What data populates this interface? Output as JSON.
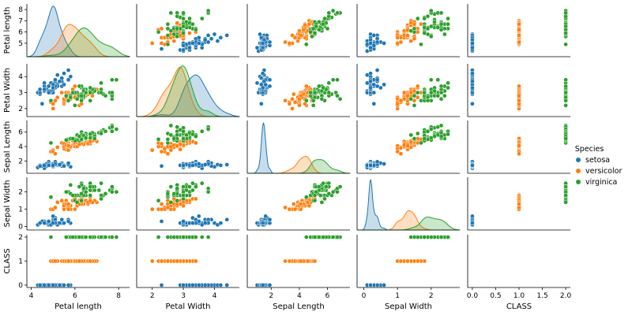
{
  "chart_data": {
    "type": "scatter",
    "subtype": "pairplot",
    "variables": [
      "Petal length",
      "Petal Width",
      "Sepal Length",
      "Sepal Width",
      "CLASS"
    ],
    "diagonal": "kde",
    "legend": {
      "title": "Species",
      "placement": "right",
      "entries": [
        {
          "name": "setosa",
          "color": "#1f77b4"
        },
        {
          "name": "versicolor",
          "color": "#ff7f0e"
        },
        {
          "name": "virginica",
          "color": "#2ca02c"
        }
      ]
    },
    "axes": [
      {
        "label": "Petal length",
        "lim": [
          3.8,
          8.5
        ],
        "ticks": [
          "4",
          "6",
          "8"
        ],
        "tick_values": [
          4,
          6,
          8
        ]
      },
      {
        "label": "Petal Width",
        "lim": [
          1.5,
          4.8
        ],
        "ticks": [
          "2",
          "3",
          "4"
        ],
        "tick_values": [
          2,
          3,
          4
        ]
      },
      {
        "label": "Sepal Length",
        "lim": [
          0.3,
          7.6
        ],
        "ticks": [
          "2",
          "4",
          "6"
        ],
        "tick_values": [
          2,
          4,
          6
        ]
      },
      {
        "label": "Sepal Width",
        "lim": [
          -0.2,
          2.85
        ],
        "ticks": [
          "0",
          "1",
          "2"
        ],
        "tick_values": [
          0,
          1,
          2
        ]
      },
      {
        "label": "CLASS",
        "lim": [
          -0.1,
          2.1
        ],
        "ticks": [
          "0.0",
          "0.5",
          "1.0",
          "1.5",
          "2.0"
        ],
        "tick_values": [
          0,
          0.5,
          1,
          1.5,
          2
        ]
      }
    ],
    "row_ticks": [
      [
        "5",
        "6",
        "7",
        "8"
      ],
      [
        "2",
        "3",
        "4"
      ],
      [
        "2",
        "4",
        "6"
      ],
      [
        "0",
        "1",
        "2"
      ],
      [
        "0",
        "1",
        "2"
      ]
    ],
    "row_tick_values": [
      [
        5,
        6,
        7,
        8
      ],
      [
        2,
        3,
        4
      ],
      [
        2,
        4,
        6
      ],
      [
        0,
        1,
        2
      ],
      [
        0,
        1,
        2
      ]
    ],
    "series_summary": [
      {
        "name": "setosa",
        "Petal length_mean": 5.0,
        "Petal Width_mean": 3.4,
        "Sepal Length_mean": 1.46,
        "Sepal Width_mean": 0.25,
        "CLASS": 0
      },
      {
        "name": "versicolor",
        "Petal length_mean": 5.9,
        "Petal Width_mean": 2.77,
        "Sepal Length_mean": 4.26,
        "Sepal Width_mean": 1.33,
        "CLASS": 1
      },
      {
        "name": "virginica",
        "Petal length_mean": 6.6,
        "Petal Width_mean": 2.97,
        "Sepal Length_mean": 5.55,
        "Sepal Width_mean": 2.03,
        "CLASS": 2
      }
    ],
    "points": {
      "setosa": [
        [
          5.1,
          3.5,
          1.4,
          0.2,
          0
        ],
        [
          4.9,
          3.0,
          1.4,
          0.2,
          0
        ],
        [
          4.7,
          3.2,
          1.3,
          0.2,
          0
        ],
        [
          4.6,
          3.1,
          1.5,
          0.2,
          0
        ],
        [
          5.0,
          3.6,
          1.4,
          0.2,
          0
        ],
        [
          5.4,
          3.9,
          1.7,
          0.4,
          0
        ],
        [
          4.6,
          3.4,
          1.4,
          0.3,
          0
        ],
        [
          5.0,
          3.4,
          1.5,
          0.2,
          0
        ],
        [
          4.4,
          2.9,
          1.4,
          0.2,
          0
        ],
        [
          4.9,
          3.1,
          1.5,
          0.1,
          0
        ],
        [
          5.4,
          3.7,
          1.5,
          0.2,
          0
        ],
        [
          4.8,
          3.4,
          1.6,
          0.2,
          0
        ],
        [
          4.8,
          3.0,
          1.4,
          0.1,
          0
        ],
        [
          4.3,
          3.0,
          1.1,
          0.1,
          0
        ],
        [
          5.8,
          4.0,
          1.2,
          0.2,
          0
        ],
        [
          5.7,
          4.4,
          1.5,
          0.4,
          0
        ],
        [
          5.4,
          3.9,
          1.3,
          0.4,
          0
        ],
        [
          5.1,
          3.5,
          1.4,
          0.3,
          0
        ],
        [
          5.7,
          3.8,
          1.7,
          0.3,
          0
        ],
        [
          5.1,
          3.8,
          1.5,
          0.3,
          0
        ],
        [
          5.4,
          3.4,
          1.7,
          0.2,
          0
        ],
        [
          5.1,
          3.7,
          1.5,
          0.4,
          0
        ],
        [
          4.6,
          3.6,
          1.0,
          0.2,
          0
        ],
        [
          5.1,
          3.3,
          1.7,
          0.5,
          0
        ],
        [
          4.8,
          3.4,
          1.9,
          0.2,
          0
        ],
        [
          5.0,
          3.0,
          1.6,
          0.2,
          0
        ],
        [
          5.0,
          3.4,
          1.6,
          0.4,
          0
        ],
        [
          5.2,
          3.5,
          1.5,
          0.2,
          0
        ],
        [
          5.2,
          3.4,
          1.4,
          0.2,
          0
        ],
        [
          4.7,
          3.2,
          1.6,
          0.2,
          0
        ],
        [
          4.8,
          3.1,
          1.6,
          0.2,
          0
        ],
        [
          5.4,
          3.4,
          1.5,
          0.4,
          0
        ],
        [
          5.2,
          4.1,
          1.5,
          0.1,
          0
        ],
        [
          5.5,
          4.2,
          1.4,
          0.2,
          0
        ],
        [
          4.9,
          3.1,
          1.5,
          0.2,
          0
        ],
        [
          5.0,
          3.2,
          1.2,
          0.2,
          0
        ],
        [
          5.5,
          3.5,
          1.3,
          0.2,
          0
        ],
        [
          4.9,
          3.6,
          1.4,
          0.1,
          0
        ],
        [
          4.4,
          3.0,
          1.3,
          0.2,
          0
        ],
        [
          5.1,
          3.4,
          1.5,
          0.2,
          0
        ],
        [
          5.0,
          3.5,
          1.3,
          0.3,
          0
        ],
        [
          4.5,
          2.3,
          1.3,
          0.3,
          0
        ],
        [
          4.4,
          3.2,
          1.3,
          0.2,
          0
        ],
        [
          5.0,
          3.5,
          1.6,
          0.6,
          0
        ],
        [
          5.1,
          3.8,
          1.9,
          0.4,
          0
        ],
        [
          4.8,
          3.0,
          1.4,
          0.3,
          0
        ],
        [
          5.1,
          3.8,
          1.6,
          0.2,
          0
        ],
        [
          4.6,
          3.2,
          1.4,
          0.2,
          0
        ],
        [
          5.3,
          3.7,
          1.5,
          0.2,
          0
        ],
        [
          5.0,
          3.3,
          1.4,
          0.2,
          0
        ]
      ],
      "versicolor": [
        [
          7.0,
          3.2,
          4.7,
          1.4,
          1
        ],
        [
          6.4,
          3.2,
          4.5,
          1.5,
          1
        ],
        [
          6.9,
          3.1,
          4.9,
          1.5,
          1
        ],
        [
          5.5,
          2.3,
          4.0,
          1.3,
          1
        ],
        [
          6.5,
          2.8,
          4.6,
          1.5,
          1
        ],
        [
          5.7,
          2.8,
          4.5,
          1.3,
          1
        ],
        [
          6.3,
          3.3,
          4.7,
          1.6,
          1
        ],
        [
          4.9,
          2.4,
          3.3,
          1.0,
          1
        ],
        [
          6.6,
          2.9,
          4.6,
          1.3,
          1
        ],
        [
          5.2,
          2.7,
          3.9,
          1.4,
          1
        ],
        [
          5.0,
          2.0,
          3.5,
          1.0,
          1
        ],
        [
          5.9,
          3.0,
          4.2,
          1.5,
          1
        ],
        [
          6.0,
          2.2,
          4.0,
          1.0,
          1
        ],
        [
          6.1,
          2.9,
          4.7,
          1.4,
          1
        ],
        [
          5.6,
          2.9,
          3.6,
          1.3,
          1
        ],
        [
          6.7,
          3.1,
          4.4,
          1.4,
          1
        ],
        [
          5.6,
          3.0,
          4.5,
          1.5,
          1
        ],
        [
          5.8,
          2.7,
          4.1,
          1.0,
          1
        ],
        [
          6.2,
          2.2,
          4.5,
          1.5,
          1
        ],
        [
          5.6,
          2.5,
          3.9,
          1.1,
          1
        ],
        [
          5.9,
          3.2,
          4.8,
          1.8,
          1
        ],
        [
          6.1,
          2.8,
          4.0,
          1.3,
          1
        ],
        [
          6.3,
          2.5,
          4.9,
          1.5,
          1
        ],
        [
          6.1,
          2.8,
          4.7,
          1.2,
          1
        ],
        [
          6.4,
          2.9,
          4.3,
          1.3,
          1
        ],
        [
          6.6,
          3.0,
          4.4,
          1.4,
          1
        ],
        [
          6.8,
          2.8,
          4.8,
          1.4,
          1
        ],
        [
          6.7,
          3.0,
          5.0,
          1.7,
          1
        ],
        [
          6.0,
          2.9,
          4.5,
          1.5,
          1
        ],
        [
          5.7,
          2.6,
          3.5,
          1.0,
          1
        ],
        [
          5.5,
          2.4,
          3.8,
          1.1,
          1
        ],
        [
          5.5,
          2.4,
          3.7,
          1.0,
          1
        ],
        [
          5.8,
          2.7,
          3.9,
          1.2,
          1
        ],
        [
          6.0,
          2.7,
          5.1,
          1.6,
          1
        ],
        [
          5.4,
          3.0,
          4.5,
          1.5,
          1
        ],
        [
          6.0,
          3.4,
          4.5,
          1.6,
          1
        ],
        [
          6.7,
          3.1,
          4.7,
          1.5,
          1
        ],
        [
          6.3,
          2.3,
          4.4,
          1.3,
          1
        ],
        [
          5.6,
          3.0,
          4.1,
          1.3,
          1
        ],
        [
          5.5,
          2.5,
          4.0,
          1.3,
          1
        ],
        [
          5.5,
          2.6,
          4.4,
          1.2,
          1
        ],
        [
          6.1,
          3.0,
          4.6,
          1.4,
          1
        ],
        [
          5.8,
          2.6,
          4.0,
          1.2,
          1
        ],
        [
          5.0,
          2.3,
          3.3,
          1.0,
          1
        ],
        [
          5.6,
          2.7,
          4.2,
          1.3,
          1
        ],
        [
          5.7,
          3.0,
          4.2,
          1.2,
          1
        ],
        [
          5.7,
          2.9,
          4.2,
          1.3,
          1
        ],
        [
          6.2,
          2.9,
          4.3,
          1.3,
          1
        ],
        [
          5.1,
          2.5,
          3.0,
          1.1,
          1
        ],
        [
          5.7,
          2.8,
          4.1,
          1.3,
          1
        ]
      ],
      "virginica": [
        [
          6.3,
          3.3,
          6.0,
          2.5,
          2
        ],
        [
          5.8,
          2.7,
          5.1,
          1.9,
          2
        ],
        [
          7.1,
          3.0,
          5.9,
          2.1,
          2
        ],
        [
          6.3,
          2.9,
          5.6,
          1.8,
          2
        ],
        [
          6.5,
          3.0,
          5.8,
          2.2,
          2
        ],
        [
          7.6,
          3.0,
          6.6,
          2.1,
          2
        ],
        [
          4.9,
          2.5,
          4.5,
          1.7,
          2
        ],
        [
          7.3,
          2.9,
          6.3,
          1.8,
          2
        ],
        [
          6.7,
          2.5,
          5.8,
          1.8,
          2
        ],
        [
          7.2,
          3.6,
          6.1,
          2.5,
          2
        ],
        [
          6.5,
          3.2,
          5.1,
          2.0,
          2
        ],
        [
          6.4,
          2.7,
          5.3,
          1.9,
          2
        ],
        [
          6.8,
          3.0,
          5.5,
          2.1,
          2
        ],
        [
          5.7,
          2.5,
          5.0,
          2.0,
          2
        ],
        [
          5.8,
          2.8,
          5.1,
          2.4,
          2
        ],
        [
          6.4,
          3.2,
          5.3,
          2.3,
          2
        ],
        [
          6.5,
          3.0,
          5.5,
          1.8,
          2
        ],
        [
          7.7,
          3.8,
          6.7,
          2.2,
          2
        ],
        [
          7.7,
          2.6,
          6.9,
          2.3,
          2
        ],
        [
          6.0,
          2.2,
          5.0,
          1.5,
          2
        ],
        [
          6.9,
          3.2,
          5.7,
          2.3,
          2
        ],
        [
          5.6,
          2.8,
          4.9,
          2.0,
          2
        ],
        [
          7.7,
          2.8,
          6.7,
          2.0,
          2
        ],
        [
          6.3,
          2.7,
          4.9,
          1.8,
          2
        ],
        [
          6.7,
          3.3,
          5.7,
          2.1,
          2
        ],
        [
          7.2,
          3.2,
          6.0,
          1.8,
          2
        ],
        [
          6.2,
          2.8,
          4.8,
          1.8,
          2
        ],
        [
          6.1,
          3.0,
          4.9,
          1.8,
          2
        ],
        [
          6.4,
          2.8,
          5.6,
          2.1,
          2
        ],
        [
          7.2,
          3.0,
          5.8,
          1.6,
          2
        ],
        [
          7.4,
          2.8,
          6.1,
          1.9,
          2
        ],
        [
          7.9,
          3.8,
          6.4,
          2.0,
          2
        ],
        [
          6.4,
          2.8,
          5.6,
          2.2,
          2
        ],
        [
          6.3,
          2.8,
          5.1,
          1.5,
          2
        ],
        [
          6.1,
          2.6,
          5.6,
          1.4,
          2
        ],
        [
          7.7,
          3.0,
          6.1,
          2.3,
          2
        ],
        [
          6.3,
          3.4,
          5.6,
          2.4,
          2
        ],
        [
          6.4,
          3.1,
          5.5,
          1.8,
          2
        ],
        [
          6.0,
          3.0,
          4.8,
          1.8,
          2
        ],
        [
          6.9,
          3.1,
          5.4,
          2.1,
          2
        ],
        [
          6.7,
          3.1,
          5.6,
          2.4,
          2
        ],
        [
          6.9,
          3.1,
          5.1,
          2.3,
          2
        ],
        [
          5.8,
          2.7,
          5.1,
          1.9,
          2
        ],
        [
          6.8,
          3.2,
          5.9,
          2.3,
          2
        ],
        [
          6.7,
          3.3,
          5.7,
          2.5,
          2
        ],
        [
          6.7,
          3.0,
          5.2,
          2.3,
          2
        ],
        [
          6.3,
          2.5,
          5.0,
          1.9,
          2
        ],
        [
          6.5,
          3.0,
          5.2,
          2.0,
          2
        ],
        [
          6.2,
          3.4,
          5.4,
          2.3,
          2
        ],
        [
          5.9,
          3.0,
          5.1,
          1.8,
          2
        ]
      ]
    }
  }
}
